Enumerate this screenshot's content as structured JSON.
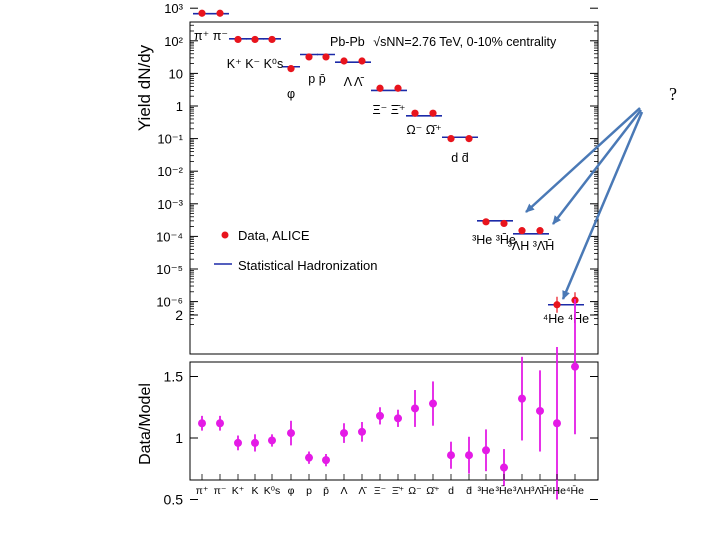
{
  "annotation": {
    "question_mark": "?"
  },
  "colors": {
    "data": "#e8141d",
    "model": "#1c2aa8",
    "ratio": "#e41be6",
    "arrow": "#4a79b6",
    "axis": "#000000"
  },
  "chart_data": [
    {
      "type": "scatter",
      "title": "Pb-Pb √sNN=2.76 TeV, 0-10% centrality",
      "title_prefix": "Pb-Pb",
      "title_energy": "√sNN=2.76 TeV, 0-10% centrality",
      "ylabel": "Yield dN/dy",
      "yscale": "log",
      "ylim": [
        1e-07,
        2000
      ],
      "ytick_labels": [
        "10³",
        "10²",
        "10",
        "1",
        "10⁻¹",
        "10⁻²",
        "10⁻³",
        "10⁻⁴",
        "10⁻⁵",
        "10⁻⁶"
      ],
      "legend": {
        "placement": "center-left",
        "data_label": "Data, ALICE",
        "model_label": "Statistical Hadronization"
      },
      "particles": [
        "π⁺",
        "π⁻",
        "K⁺",
        "K⁻",
        "K⁰s",
        "φ",
        "p",
        "p̄",
        "Λ",
        "Λ̄",
        "Ξ⁻",
        "Ξ̄⁺",
        "Ω⁻",
        "Ω̄⁺",
        "d",
        "d̄",
        "³He",
        "³H̄e",
        "³ΛH",
        "³Λ̄H̄",
        "⁴He",
        "⁴H̄e"
      ],
      "group_labels": [
        "π⁺ π⁻",
        "K⁺ K⁻ K⁰s",
        "φ",
        "p  p̄",
        "Λ  Λ̄",
        "Ξ⁻  Ξ̄⁺",
        "Ω⁻  Ω̄⁺",
        "d  d̄",
        "³He ³H̄e",
        "³ΛH ³Λ̄H̄",
        "⁴He ⁴H̄e"
      ],
      "data_values": [
        700,
        700,
        110,
        110,
        110,
        14,
        32,
        32,
        24,
        24,
        3.5,
        3.5,
        0.6,
        0.6,
        0.1,
        0.1,
        0.00028,
        0.00025,
        0.00015,
        0.00015,
        8e-07,
        1.1e-06
      ],
      "model_values": [
        680,
        680,
        115,
        115,
        115,
        16,
        38,
        38,
        22,
        22,
        3.0,
        3.0,
        0.5,
        0.5,
        0.11,
        0.11,
        0.0003,
        0.0003,
        0.00012,
        0.00012,
        8e-07,
        8e-07
      ]
    },
    {
      "type": "scatter",
      "xlabel": "",
      "ylabel": "Data/Model",
      "ylim": [
        0.4,
        2.2
      ],
      "ytick_labels": [
        "0.5",
        "1",
        "1.5",
        "2"
      ],
      "categories": [
        "π⁺",
        "π⁻",
        "K⁺",
        "K",
        "K⁰s",
        "φ",
        "p",
        "p̄",
        "Λ",
        "Λ̄",
        "Ξ⁻",
        "Ξ̄⁺",
        "Ω⁻",
        "Ω̄⁺",
        "d",
        "d̄",
        "³He",
        "³H̄e",
        "³ΛH",
        "³Λ̄H̄",
        "⁴He",
        "⁴H̄e"
      ],
      "values": [
        1.12,
        1.12,
        0.96,
        0.96,
        0.98,
        1.04,
        0.84,
        0.82,
        1.04,
        1.05,
        1.18,
        1.16,
        1.24,
        1.28,
        0.86,
        0.86,
        0.9,
        0.76,
        1.32,
        1.22,
        1.12,
        1.58
      ],
      "errors": [
        0.06,
        0.06,
        0.06,
        0.07,
        0.05,
        0.1,
        0.05,
        0.05,
        0.08,
        0.08,
        0.07,
        0.07,
        0.15,
        0.18,
        0.11,
        0.15,
        0.17,
        0.15,
        0.34,
        0.33,
        0.62,
        0.55
      ]
    }
  ]
}
